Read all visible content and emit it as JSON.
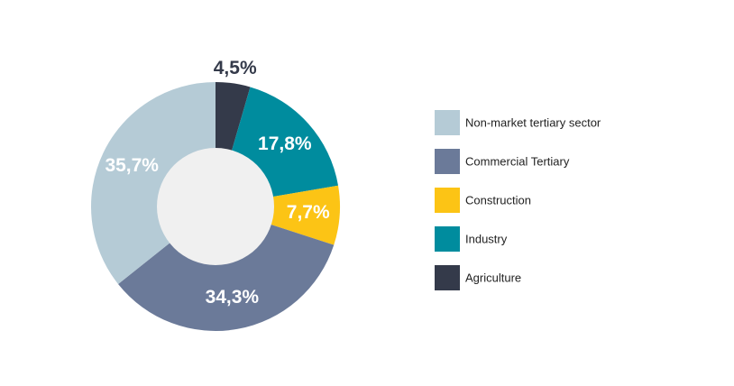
{
  "chart_data": {
    "type": "donut",
    "categories": [
      "Non-market tertiary sector",
      "Commercial Tertiary",
      "Construction",
      "Industry",
      "Agriculture"
    ],
    "values": [
      35.7,
      34.3,
      7.7,
      17.8,
      4.5
    ],
    "value_labels": [
      "35,7%",
      "34,3%",
      "7,7%",
      "17,8%",
      "4,5%"
    ],
    "colors": [
      "#b5cbd6",
      "#6b7a99",
      "#fcc415",
      "#008c9e",
      "#343a4a"
    ],
    "legend": "right"
  }
}
